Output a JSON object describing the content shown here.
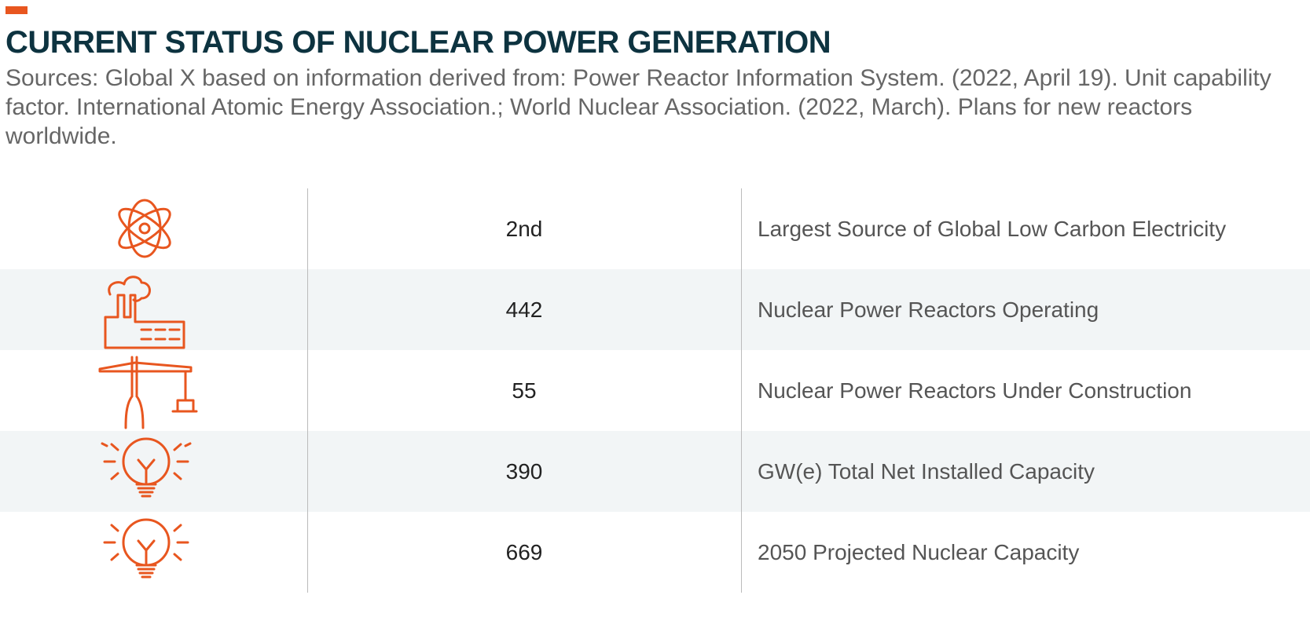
{
  "header": {
    "title": "CURRENT STATUS OF NUCLEAR POWER GENERATION",
    "sources": "Sources: Global X based on information derived from: Power Reactor Information System. (2022, April 19). Unit capability factor. International Atomic Energy Association.; World Nuclear Association. (2022, March). Plans for new reactors worldwide."
  },
  "table": {
    "rows": [
      [
        "2nd",
        "Largest Source of Global Low Carbon Electricity"
      ],
      [
        "442",
        "Nuclear Power Reactors Operating"
      ],
      [
        "55",
        "Nuclear Power Reactors Under Construction"
      ],
      [
        "390",
        "GW(e) Total Net Installed Capacity"
      ],
      [
        "669",
        "2050 Projected Nuclear Capacity"
      ]
    ]
  }
}
